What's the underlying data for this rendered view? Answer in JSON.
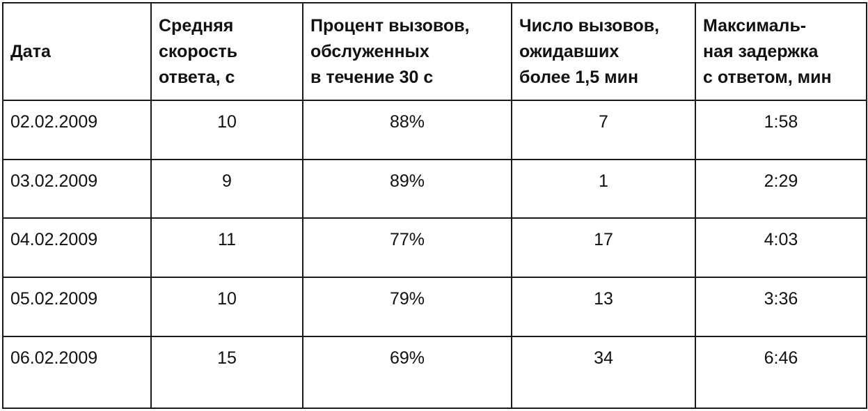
{
  "table": {
    "headers": [
      "Дата",
      "Средняя\nскорость\nответа, с",
      "Процент вызовов,\nобслуженных\nв течение 30 с",
      "Число вызовов,\nожидавших\nболее 1,5 мин",
      "Максималь-\nная задержка\nс ответом, мин"
    ],
    "rows": [
      [
        "02.02.2009",
        "10",
        "88%",
        "7",
        "1:58"
      ],
      [
        "03.02.2009",
        "9",
        "89%",
        "1",
        "2:29"
      ],
      [
        "04.02.2009",
        "11",
        "77%",
        "17",
        "4:03"
      ],
      [
        "05.02.2009",
        "10",
        "79%",
        "13",
        "3:36"
      ],
      [
        "06.02.2009",
        "15",
        "69%",
        "34",
        "6:46"
      ]
    ]
  }
}
